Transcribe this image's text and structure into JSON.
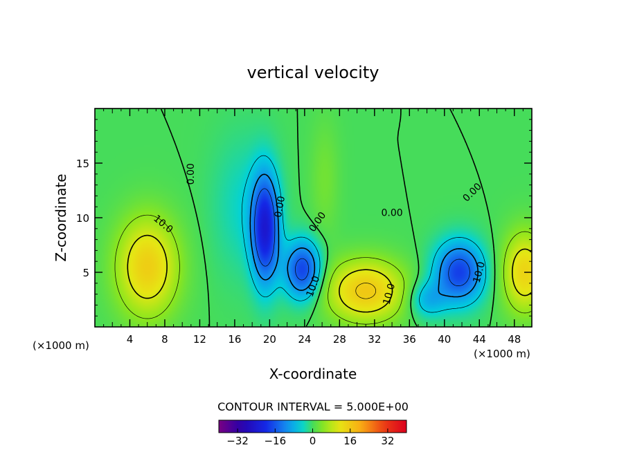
{
  "chart_data": {
    "type": "heatmap",
    "title": "vertical velocity",
    "xlabel": "X-coordinate",
    "ylabel": "Z-coordinate",
    "x_unit_left": "(×1000 m)",
    "x_unit_right": "(×1000 m)",
    "xlim": [
      0,
      50
    ],
    "ylim": [
      0,
      20
    ],
    "x_ticks": [
      4,
      8,
      12,
      16,
      20,
      24,
      28,
      32,
      36,
      40,
      44,
      48
    ],
    "y_ticks": [
      5,
      10,
      15
    ],
    "contour_interval_text": "CONTOUR INTERVAL = 5.000E+00",
    "colorbar": {
      "range": [
        -40,
        40
      ],
      "ticks": [
        -32,
        -16,
        0,
        16,
        32
      ]
    },
    "contour_labels": [
      {
        "text": "10.0",
        "x": 7.8,
        "z": 9.4,
        "angle": 40
      },
      {
        "text": "0.00",
        "x": 11.0,
        "z": 14.0,
        "angle": -90
      },
      {
        "text": "0.00",
        "x": 21.2,
        "z": 11.0,
        "angle": -80
      },
      {
        "text": "0.00",
        "x": 25.5,
        "z": 9.6,
        "angle": -55
      },
      {
        "text": "10.0",
        "x": 25.0,
        "z": 3.7,
        "angle": -70
      },
      {
        "text": "0.00",
        "x": 34.0,
        "z": 10.4,
        "angle": 0
      },
      {
        "text": "10.0",
        "x": 33.7,
        "z": 3.0,
        "angle": -75
      },
      {
        "text": "10.0",
        "x": 44.0,
        "z": 5.0,
        "angle": -75
      },
      {
        "text": "0.00",
        "x": 43.2,
        "z": 12.3,
        "angle": -45
      }
    ],
    "field_features": [
      {
        "name": "updraft",
        "x": 6.0,
        "z": 5.5,
        "sx": 2.5,
        "sz": 3.2,
        "amp": 15
      },
      {
        "name": "updraft",
        "x": 31.0,
        "z": 3.3,
        "sx": 3.2,
        "sz": 2.0,
        "amp": 16
      },
      {
        "name": "updraft",
        "x": 49.2,
        "z": 5.0,
        "sx": 1.8,
        "sz": 2.6,
        "amp": 14
      },
      {
        "name": "updraft",
        "x": 26.3,
        "z": 13.5,
        "sx": 1.2,
        "sz": 4.0,
        "amp": 3
      },
      {
        "name": "downdraft",
        "x": 19.5,
        "z": 9.0,
        "sx": 1.1,
        "sz": 3.5,
        "amp": -22
      },
      {
        "name": "downdraft",
        "x": 23.8,
        "z": 5.2,
        "sx": 1.5,
        "sz": 1.9,
        "amp": -18
      },
      {
        "name": "downdraft",
        "x": 41.7,
        "z": 5.0,
        "sx": 2.0,
        "sz": 2.0,
        "amp": -18
      },
      {
        "name": "downdraft",
        "x": 38.0,
        "z": 2.5,
        "sx": 1.5,
        "sz": 1.2,
        "amp": -8
      },
      {
        "name": "downdraft",
        "x": 17.0,
        "z": 11.0,
        "sx": 2.5,
        "sz": 4.5,
        "amp": -4
      }
    ]
  }
}
